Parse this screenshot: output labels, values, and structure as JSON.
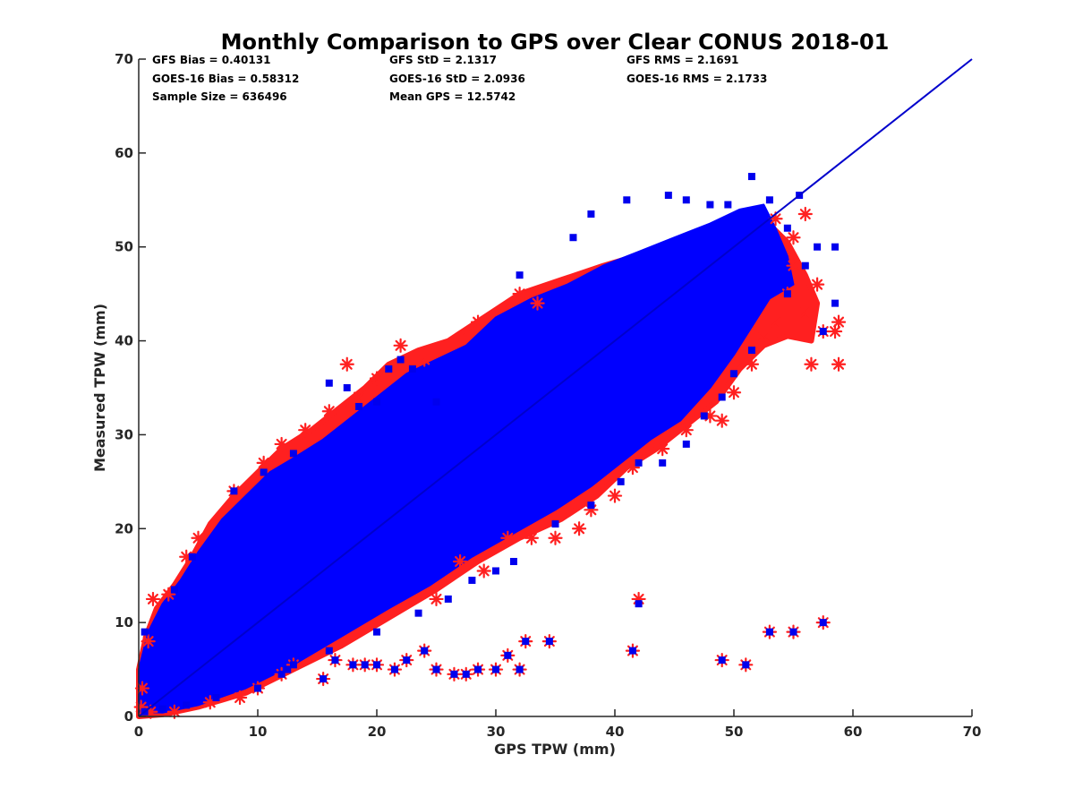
{
  "chart_data": {
    "type": "scatter",
    "title": "Monthly Comparison to GPS over Clear CONUS 2018-01",
    "xlabel": "GPS TPW (mm)",
    "ylabel": "Measured TPW (mm)",
    "xlim": [
      0,
      70
    ],
    "ylim": [
      0,
      70
    ],
    "xticks": [
      "0",
      "10",
      "20",
      "30",
      "40",
      "50",
      "60",
      "70"
    ],
    "yticks": [
      "0",
      "10",
      "20",
      "30",
      "40",
      "50",
      "60",
      "70"
    ],
    "grid": false,
    "stats": {
      "gfs_bias": "GFS Bias = 0.40131",
      "goes_bias": "GOES-16 Bias = 0.58312",
      "sample_size": "Sample Size = 636496",
      "gfs_std": "GFS StD = 2.1317",
      "goes_std": "GOES-16 StD = 2.0936",
      "mean_gps": "Mean GPS = 12.5742",
      "gfs_rms": "GFS RMS = 2.1691",
      "goes_rms": "GOES-16 RMS = 2.1733"
    },
    "reference_line": {
      "x": [
        0,
        70
      ],
      "y": [
        0,
        70
      ],
      "color": "#0000cc"
    },
    "series": [
      {
        "marker": "asterisk",
        "color": "#ff2020",
        "points": [
          [
            0.8,
            8.0
          ],
          [
            1.2,
            12.5
          ],
          [
            2.5,
            13.0
          ],
          [
            4.0,
            17.0
          ],
          [
            5.0,
            19.0
          ],
          [
            8.0,
            24.0
          ],
          [
            10.5,
            27.0
          ],
          [
            12.0,
            29.0
          ],
          [
            14.0,
            30.5
          ],
          [
            16.0,
            32.5
          ],
          [
            17.5,
            37.5
          ],
          [
            18.5,
            34.0
          ],
          [
            20.0,
            36.0
          ],
          [
            22.0,
            39.5
          ],
          [
            24.0,
            38.0
          ],
          [
            28.5,
            42.0
          ],
          [
            32.0,
            45.0
          ],
          [
            33.5,
            44.0
          ],
          [
            25.0,
            12.5
          ],
          [
            27.0,
            16.5
          ],
          [
            29.0,
            15.5
          ],
          [
            31.0,
            19.0
          ],
          [
            33.0,
            19.0
          ],
          [
            35.0,
            19.0
          ],
          [
            37.0,
            20.0
          ],
          [
            38.0,
            22.0
          ],
          [
            40.0,
            23.5
          ],
          [
            41.5,
            26.5
          ],
          [
            44.0,
            28.5
          ],
          [
            46.0,
            30.5
          ],
          [
            48.0,
            32.0
          ],
          [
            49.0,
            31.5
          ],
          [
            50.0,
            34.5
          ],
          [
            51.5,
            37.5
          ],
          [
            52.5,
            40.5
          ],
          [
            53.5,
            42.0
          ],
          [
            54.5,
            45.0
          ],
          [
            55.0,
            48.0
          ],
          [
            56.0,
            43.0
          ],
          [
            56.5,
            37.5
          ],
          [
            57.0,
            46.0
          ],
          [
            57.5,
            41.0
          ],
          [
            58.5,
            41.0
          ],
          [
            58.8,
            42.0
          ],
          [
            58.8,
            37.5
          ],
          [
            55.0,
            51.0
          ],
          [
            56.0,
            53.5
          ],
          [
            53.5,
            53.0
          ],
          [
            12.0,
            4.5
          ],
          [
            13.0,
            5.5
          ],
          [
            15.5,
            4.0
          ],
          [
            16.5,
            6.0
          ],
          [
            18.0,
            5.5
          ],
          [
            19.0,
            5.5
          ],
          [
            20.0,
            5.5
          ],
          [
            21.5,
            5.0
          ],
          [
            22.5,
            6.0
          ],
          [
            24.0,
            7.0
          ],
          [
            25.0,
            5.0
          ],
          [
            26.5,
            4.5
          ],
          [
            27.5,
            4.5
          ],
          [
            28.5,
            5.0
          ],
          [
            30.0,
            5.0
          ],
          [
            31.0,
            6.5
          ],
          [
            32.0,
            5.0
          ],
          [
            32.5,
            8.0
          ],
          [
            34.5,
            8.0
          ],
          [
            41.5,
            7.0
          ],
          [
            42.0,
            12.5
          ],
          [
            49.0,
            6.0
          ],
          [
            51.0,
            5.5
          ],
          [
            53.0,
            9.0
          ],
          [
            55.0,
            9.0
          ],
          [
            57.5,
            10.0
          ],
          [
            0.2,
            1.0
          ],
          [
            0.3,
            3.0
          ],
          [
            1.0,
            0.5
          ],
          [
            3.0,
            0.5
          ],
          [
            6.0,
            1.5
          ],
          [
            8.5,
            2.0
          ],
          [
            10.0,
            3.0
          ]
        ]
      },
      {
        "marker": "square",
        "color": "#0000ee",
        "points": [
          [
            0.5,
            9.0
          ],
          [
            3.0,
            13.5
          ],
          [
            4.5,
            17.0
          ],
          [
            8.0,
            24.0
          ],
          [
            10.5,
            26.0
          ],
          [
            13.0,
            28.0
          ],
          [
            16.0,
            35.5
          ],
          [
            17.5,
            35.0
          ],
          [
            18.5,
            33.0
          ],
          [
            20.0,
            33.5
          ],
          [
            21.0,
            37.0
          ],
          [
            22.0,
            38.0
          ],
          [
            23.0,
            37.0
          ],
          [
            25.0,
            33.5
          ],
          [
            32.0,
            47.0
          ],
          [
            36.5,
            51.0
          ],
          [
            38.0,
            53.5
          ],
          [
            41.0,
            55.0
          ],
          [
            44.5,
            55.5
          ],
          [
            46.0,
            55.0
          ],
          [
            48.0,
            54.5
          ],
          [
            49.5,
            54.5
          ],
          [
            51.5,
            57.5
          ],
          [
            53.0,
            55.0
          ],
          [
            54.5,
            52.0
          ],
          [
            55.5,
            55.5
          ],
          [
            57.0,
            50.0
          ],
          [
            58.5,
            50.0
          ],
          [
            58.5,
            44.0
          ],
          [
            57.5,
            41.0
          ],
          [
            56.0,
            48.0
          ],
          [
            54.5,
            45.0
          ],
          [
            51.5,
            39.0
          ],
          [
            50.0,
            36.5
          ],
          [
            49.0,
            34.0
          ],
          [
            47.5,
            32.0
          ],
          [
            46.0,
            29.0
          ],
          [
            44.0,
            27.0
          ],
          [
            42.0,
            27.0
          ],
          [
            40.5,
            25.0
          ],
          [
            38.0,
            22.5
          ],
          [
            35.0,
            20.5
          ],
          [
            31.5,
            16.5
          ],
          [
            30.0,
            15.5
          ],
          [
            28.0,
            14.5
          ],
          [
            26.0,
            12.5
          ],
          [
            23.5,
            11.0
          ],
          [
            20.0,
            9.0
          ],
          [
            16.0,
            7.0
          ],
          [
            12.5,
            5.0
          ],
          [
            12.0,
            4.5
          ],
          [
            13.0,
            5.5
          ],
          [
            15.5,
            4.0
          ],
          [
            16.5,
            6.0
          ],
          [
            18.0,
            5.5
          ],
          [
            19.0,
            5.5
          ],
          [
            20.0,
            5.5
          ],
          [
            21.5,
            5.0
          ],
          [
            22.5,
            6.0
          ],
          [
            24.0,
            7.0
          ],
          [
            25.0,
            5.0
          ],
          [
            26.5,
            4.5
          ],
          [
            27.5,
            4.5
          ],
          [
            28.5,
            5.0
          ],
          [
            30.0,
            5.0
          ],
          [
            31.0,
            6.5
          ],
          [
            32.0,
            5.0
          ],
          [
            32.5,
            8.0
          ],
          [
            34.5,
            8.0
          ],
          [
            41.5,
            7.0
          ],
          [
            42.0,
            12.0
          ],
          [
            49.0,
            6.0
          ],
          [
            51.0,
            5.5
          ],
          [
            53.0,
            9.0
          ],
          [
            55.0,
            9.0
          ],
          [
            57.5,
            10.0
          ],
          [
            10.0,
            3.0
          ],
          [
            0.5,
            0.5
          ],
          [
            2.0,
            0.8
          ],
          [
            4.0,
            1.2
          ],
          [
            6.5,
            2.0
          ]
        ]
      }
    ],
    "clouds": [
      {
        "name": "red-outline-cloud",
        "color": "#ff2020",
        "polygon": [
          [
            0.0,
            0.0
          ],
          [
            0.0,
            5.0
          ],
          [
            0.6,
            8.5
          ],
          [
            1.5,
            11.5
          ],
          [
            3.0,
            14.0
          ],
          [
            4.5,
            17.0
          ],
          [
            6.0,
            20.5
          ],
          [
            8.0,
            23.5
          ],
          [
            10.0,
            26.0
          ],
          [
            12.0,
            28.5
          ],
          [
            14.5,
            30.5
          ],
          [
            17.0,
            33.0
          ],
          [
            19.0,
            35.0
          ],
          [
            21.0,
            37.5
          ],
          [
            23.5,
            39.0
          ],
          [
            26.0,
            40.0
          ],
          [
            29.0,
            42.5
          ],
          [
            32.0,
            45.0
          ],
          [
            35.5,
            46.5
          ],
          [
            39.0,
            48.0
          ],
          [
            43.0,
            49.5
          ],
          [
            47.0,
            51.0
          ],
          [
            50.0,
            52.5
          ],
          [
            52.5,
            53.0
          ],
          [
            54.5,
            50.5
          ],
          [
            56.0,
            47.0
          ],
          [
            57.0,
            44.0
          ],
          [
            56.5,
            40.0
          ],
          [
            54.5,
            40.5
          ],
          [
            52.5,
            39.5
          ],
          [
            50.5,
            37.0
          ],
          [
            48.5,
            33.5
          ],
          [
            46.0,
            31.0
          ],
          [
            43.5,
            28.5
          ],
          [
            41.0,
            26.5
          ],
          [
            38.5,
            23.5
          ],
          [
            35.5,
            21.0
          ],
          [
            32.0,
            19.0
          ],
          [
            28.5,
            16.5
          ],
          [
            25.0,
            13.5
          ],
          [
            21.0,
            10.5
          ],
          [
            17.0,
            7.5
          ],
          [
            13.0,
            5.0
          ],
          [
            9.0,
            2.5
          ],
          [
            5.0,
            1.0
          ],
          [
            2.0,
            0.2
          ]
        ]
      },
      {
        "name": "blue-dense-cloud",
        "color": "#0000ff",
        "polygon": [
          [
            0.0,
            0.5
          ],
          [
            0.0,
            5.0
          ],
          [
            0.8,
            9.0
          ],
          [
            2.0,
            12.0
          ],
          [
            3.5,
            14.5
          ],
          [
            5.0,
            17.5
          ],
          [
            7.0,
            21.0
          ],
          [
            9.0,
            23.5
          ],
          [
            11.0,
            26.0
          ],
          [
            13.0,
            27.5
          ],
          [
            15.5,
            29.5
          ],
          [
            18.0,
            32.0
          ],
          [
            20.0,
            34.0
          ],
          [
            22.5,
            36.5
          ],
          [
            25.0,
            38.0
          ],
          [
            27.5,
            39.5
          ],
          [
            30.0,
            42.5
          ],
          [
            33.0,
            44.5
          ],
          [
            36.0,
            46.0
          ],
          [
            39.0,
            48.0
          ],
          [
            42.0,
            49.5
          ],
          [
            45.0,
            51.0
          ],
          [
            48.0,
            52.5
          ],
          [
            50.5,
            54.0
          ],
          [
            52.5,
            54.5
          ],
          [
            53.5,
            52.0
          ],
          [
            54.5,
            49.0
          ],
          [
            55.0,
            46.0
          ],
          [
            53.0,
            44.5
          ],
          [
            51.5,
            41.5
          ],
          [
            50.0,
            38.5
          ],
          [
            48.0,
            35.0
          ],
          [
            45.5,
            31.5
          ],
          [
            43.0,
            29.5
          ],
          [
            40.5,
            27.0
          ],
          [
            38.0,
            24.5
          ],
          [
            35.0,
            22.0
          ],
          [
            31.5,
            19.5
          ],
          [
            28.0,
            17.0
          ],
          [
            24.5,
            14.0
          ],
          [
            21.0,
            11.5
          ],
          [
            17.0,
            8.5
          ],
          [
            13.0,
            5.5
          ],
          [
            9.0,
            3.0
          ],
          [
            5.0,
            1.2
          ],
          [
            2.0,
            0.4
          ]
        ]
      }
    ]
  }
}
